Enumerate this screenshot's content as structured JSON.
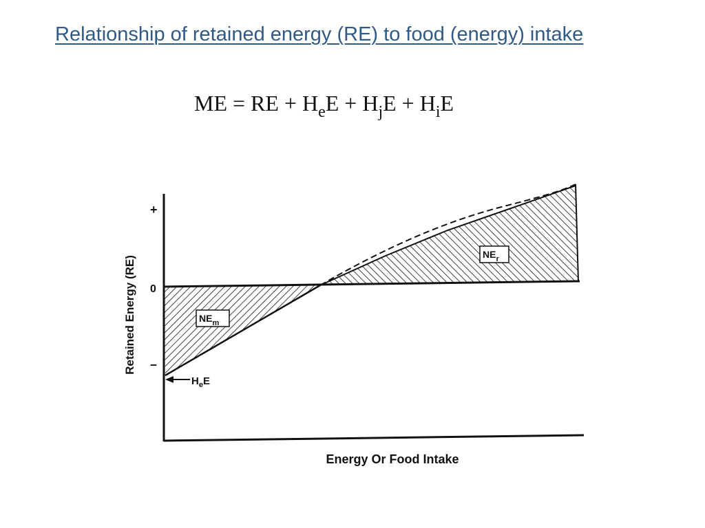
{
  "slide": {
    "title": "Relationship of retained energy (RE) to food (energy) intake"
  },
  "equation": {
    "lhs": "ME",
    "equals": " = ",
    "t1": "RE",
    "plus1": " + ",
    "t2_main": "H",
    "t2_sub": "e",
    "t2_end": "E",
    "plus2": " + ",
    "t3_main": "H",
    "t3_sub": "j",
    "t3_end": "E",
    "plus3": " + ",
    "t4_main": "H",
    "t4_sub": "i",
    "t4_end": "E"
  },
  "diagram": {
    "y_axis_label": "Retained Energy (RE)",
    "x_axis_label": "Energy Or Food Intake",
    "tick_plus": "+",
    "tick_zero": "0",
    "tick_minus": "–",
    "region_maintenance": {
      "label_main": "NE",
      "label_sub": "m"
    },
    "region_retention": {
      "label_main": "NE",
      "label_sub": "r"
    },
    "pointer": {
      "label_main": "H",
      "label_sub": "e",
      "label_end": "E"
    }
  }
}
